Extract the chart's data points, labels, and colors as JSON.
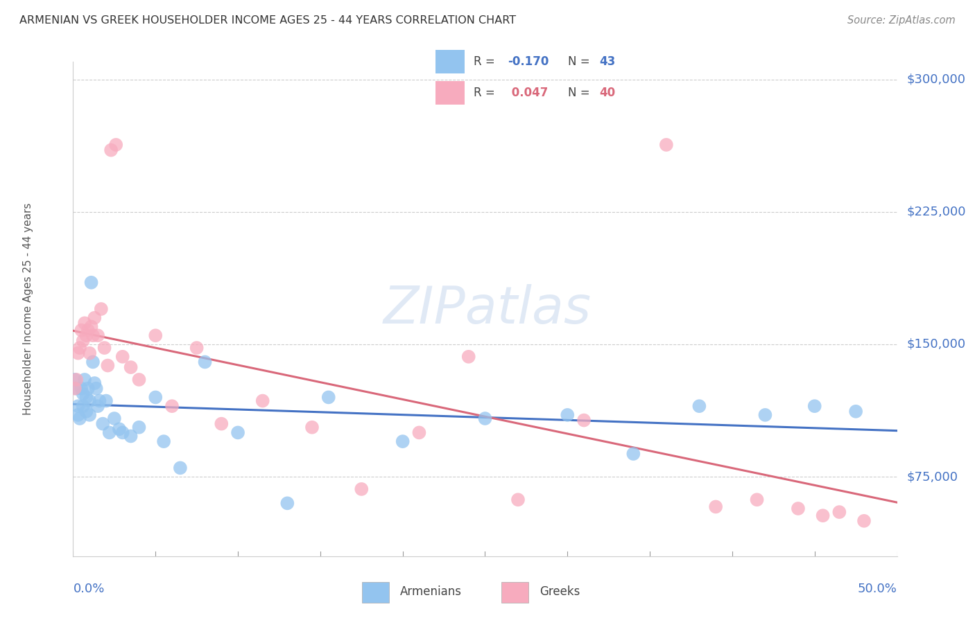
{
  "title": "ARMENIAN VS GREEK HOUSEHOLDER INCOME AGES 25 - 44 YEARS CORRELATION CHART",
  "source": "Source: ZipAtlas.com",
  "ylabel": "Householder Income Ages 25 - 44 years",
  "xmin": 0.0,
  "xmax": 0.5,
  "ymin": 30000,
  "ymax": 310000,
  "yticks": [
    75000,
    150000,
    225000,
    300000
  ],
  "ytick_labels": [
    "$75,000",
    "$150,000",
    "$225,000",
    "$300,000"
  ],
  "armenian_color": "#93C4EF",
  "greek_color": "#F7ABBE",
  "armenian_line_color": "#4472C4",
  "greek_line_color": "#D9687A",
  "R_armenian": "-0.170",
  "N_armenian": "43",
  "R_greek": "0.047",
  "N_greek": "40",
  "armenians_x": [
    0.001,
    0.002,
    0.003,
    0.003,
    0.004,
    0.005,
    0.006,
    0.006,
    0.007,
    0.008,
    0.008,
    0.009,
    0.01,
    0.01,
    0.011,
    0.012,
    0.013,
    0.014,
    0.015,
    0.016,
    0.018,
    0.02,
    0.022,
    0.025,
    0.028,
    0.03,
    0.035,
    0.04,
    0.05,
    0.055,
    0.065,
    0.08,
    0.1,
    0.13,
    0.155,
    0.2,
    0.25,
    0.3,
    0.34,
    0.38,
    0.42,
    0.45,
    0.475
  ],
  "armenians_y": [
    130000,
    125000,
    115000,
    110000,
    108000,
    125000,
    122000,
    115000,
    130000,
    120000,
    112000,
    125000,
    118000,
    110000,
    185000,
    140000,
    128000,
    125000,
    115000,
    118000,
    105000,
    118000,
    100000,
    108000,
    102000,
    100000,
    98000,
    103000,
    120000,
    95000,
    80000,
    140000,
    100000,
    60000,
    120000,
    95000,
    108000,
    110000,
    88000,
    115000,
    110000,
    115000,
    112000
  ],
  "greeks_x": [
    0.001,
    0.002,
    0.003,
    0.004,
    0.005,
    0.006,
    0.007,
    0.008,
    0.009,
    0.01,
    0.011,
    0.012,
    0.013,
    0.015,
    0.017,
    0.019,
    0.021,
    0.023,
    0.026,
    0.03,
    0.035,
    0.04,
    0.05,
    0.06,
    0.075,
    0.09,
    0.115,
    0.145,
    0.175,
    0.21,
    0.24,
    0.27,
    0.31,
    0.36,
    0.39,
    0.415,
    0.44,
    0.455,
    0.465,
    0.48
  ],
  "greeks_y": [
    125000,
    130000,
    145000,
    148000,
    158000,
    152000,
    162000,
    155000,
    158000,
    145000,
    160000,
    155000,
    165000,
    155000,
    170000,
    148000,
    138000,
    260000,
    263000,
    143000,
    137000,
    130000,
    155000,
    115000,
    148000,
    105000,
    118000,
    103000,
    68000,
    100000,
    143000,
    62000,
    107000,
    263000,
    58000,
    62000,
    57000,
    53000,
    55000,
    50000
  ]
}
